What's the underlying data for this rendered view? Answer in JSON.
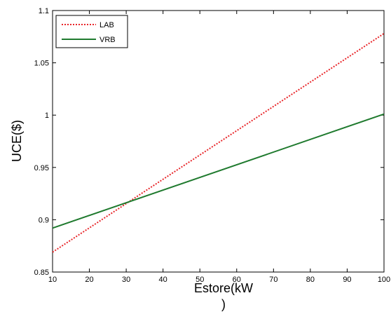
{
  "chart_data": {
    "type": "line",
    "title": "",
    "xlabel": "Estore(kW)",
    "xlabel_line1": "Estore(kW",
    "xlabel_line2": ")",
    "ylabel": "UCE($)",
    "xlim": [
      10,
      100
    ],
    "ylim": [
      0.85,
      1.1
    ],
    "x_ticks": [
      10,
      20,
      30,
      40,
      50,
      60,
      70,
      80,
      90,
      100
    ],
    "y_ticks": [
      0.85,
      0.9,
      0.95,
      1,
      1.05,
      1.1
    ],
    "x_tick_labels": [
      "10",
      "20",
      "30",
      "40",
      "50",
      "60",
      "70",
      "80",
      "90",
      "100"
    ],
    "y_tick_labels": [
      "0.85",
      "0.9",
      "0.95",
      "1",
      "1.05",
      "1.1"
    ],
    "grid": false,
    "legend_position": "top-left",
    "series": [
      {
        "name": "LAB",
        "color": "#e8262a",
        "style": "dotted",
        "x": [
          10,
          100
        ],
        "y": [
          0.869,
          1.078
        ]
      },
      {
        "name": "VRB",
        "color": "#1f7a2e",
        "style": "solid",
        "x": [
          10,
          100
        ],
        "y": [
          0.892,
          1.001
        ]
      }
    ]
  }
}
